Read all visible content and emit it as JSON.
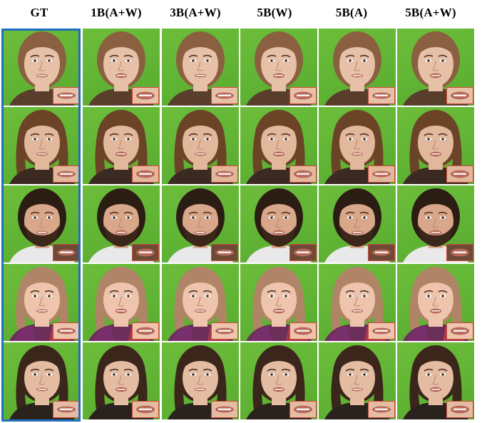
{
  "columns": [
    {
      "label": "GT"
    },
    {
      "label": "1B(A+W)"
    },
    {
      "label": "3B(A+W)"
    },
    {
      "label": "5B(W)"
    },
    {
      "label": "5B(A)"
    },
    {
      "label": "5B(A+W)"
    }
  ],
  "rows": [
    {
      "subject": "woman-1",
      "skin": "#e7c1a7",
      "hair": "#8a6040",
      "shirt": "#5a3e2c",
      "beard": false,
      "scarf": false
    },
    {
      "subject": "woman-2",
      "skin": "#e2b89c",
      "hair": "#6b4427",
      "shirt": "#3b2a22",
      "beard": false,
      "scarf": false
    },
    {
      "subject": "man-beard",
      "skin": "#d9a78a",
      "hair": "#2c1d14",
      "shirt": "#e9e9e9",
      "beard": true,
      "scarf": false
    },
    {
      "subject": "woman-3",
      "skin": "#efc4ad",
      "hair": "#b08466",
      "shirt": "#6c2f5a",
      "beard": false,
      "scarf": true
    },
    {
      "subject": "woman-4",
      "skin": "#e4bca2",
      "hair": "#3a261a",
      "shirt": "#2a221d",
      "beard": false,
      "scarf": false
    }
  ],
  "colors": {
    "background_green": "#62b434",
    "gt_frame": "#1f6fbf",
    "inset_border": "#d04a3a",
    "lips": "#b8675a"
  }
}
